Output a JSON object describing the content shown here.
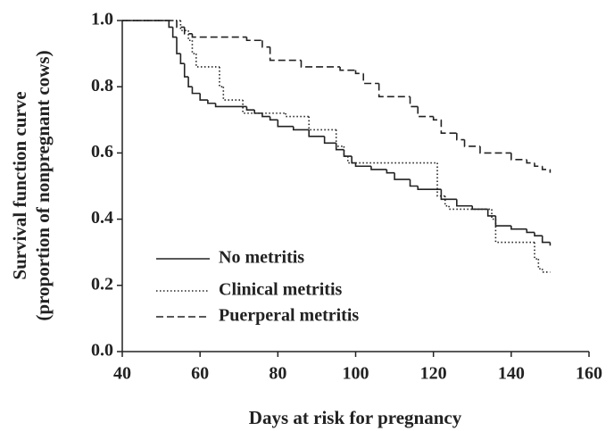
{
  "chart_data": {
    "type": "line",
    "step": "post",
    "xlabel": "Days at risk for pregnancy",
    "ylabel": [
      "Survival function curve",
      "(proportion of nonpregnant cows)"
    ],
    "xlim": [
      40,
      160
    ],
    "xticks": [
      40,
      60,
      80,
      100,
      120,
      140,
      160
    ],
    "ylim": [
      0,
      1
    ],
    "yticks": [
      {
        "value": 0,
        "label": "0.0"
      },
      0.2,
      0.4,
      0.6,
      0.8,
      {
        "value": 1,
        "label": "1.0"
      }
    ],
    "legend": "lower-left",
    "series": [
      {
        "name": "No metritis",
        "color": "#222222",
        "dash": "solid",
        "x": [
          40,
          52,
          53,
          54,
          55,
          56,
          57,
          58,
          60,
          62,
          64,
          72,
          74,
          76,
          78,
          80,
          84,
          88,
          92,
          95,
          97,
          99,
          100,
          104,
          108,
          110,
          114,
          116,
          122,
          126,
          130,
          134,
          136,
          140,
          144,
          146,
          148,
          150
        ],
        "values": [
          1.0,
          0.98,
          0.95,
          0.9,
          0.87,
          0.83,
          0.8,
          0.78,
          0.76,
          0.75,
          0.74,
          0.73,
          0.72,
          0.71,
          0.7,
          0.68,
          0.67,
          0.65,
          0.63,
          0.61,
          0.59,
          0.57,
          0.56,
          0.55,
          0.54,
          0.52,
          0.5,
          0.49,
          0.46,
          0.44,
          0.43,
          0.41,
          0.38,
          0.37,
          0.36,
          0.35,
          0.33,
          0.32
        ]
      },
      {
        "name": "Clinical metritis",
        "color": "#222222",
        "dash": "dotted",
        "x": [
          40,
          55,
          57,
          58,
          59,
          65,
          66,
          71,
          82,
          88,
          95,
          97,
          98,
          121,
          123,
          124,
          135,
          136,
          146,
          147,
          148,
          150
        ],
        "values": [
          1.0,
          0.97,
          0.94,
          0.9,
          0.86,
          0.8,
          0.76,
          0.72,
          0.71,
          0.67,
          0.62,
          0.59,
          0.57,
          0.47,
          0.44,
          0.43,
          0.4,
          0.33,
          0.28,
          0.25,
          0.24,
          0.24
        ]
      },
      {
        "name": "Puerperal metritis",
        "color": "#222222",
        "dash": "dashed",
        "x": [
          40,
          54,
          56,
          58,
          72,
          76,
          78,
          86,
          96,
          100,
          102,
          106,
          114,
          116,
          120,
          122,
          126,
          128,
          132,
          140,
          144,
          146,
          148,
          150
        ],
        "values": [
          1.0,
          0.98,
          0.96,
          0.95,
          0.94,
          0.92,
          0.88,
          0.86,
          0.85,
          0.84,
          0.81,
          0.77,
          0.74,
          0.71,
          0.7,
          0.66,
          0.64,
          0.62,
          0.6,
          0.58,
          0.57,
          0.56,
          0.55,
          0.54
        ]
      }
    ]
  }
}
